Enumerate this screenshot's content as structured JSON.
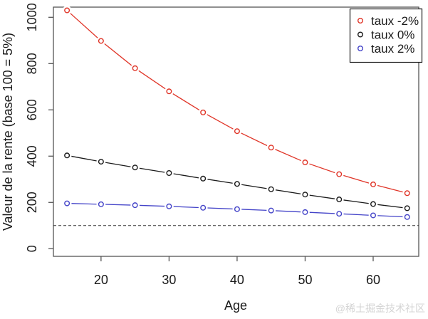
{
  "chart_data": {
    "type": "line",
    "title": "",
    "xlabel": "Age",
    "ylabel": "Valeur de la rente (base 100 = 5%)",
    "x": [
      15,
      20,
      25,
      30,
      35,
      40,
      45,
      50,
      55,
      60,
      65
    ],
    "series": [
      {
        "name": "taux -2%",
        "color": "#e03528",
        "marker": "open-circle",
        "values": [
          1030,
          898,
          780,
          680,
          589,
          508,
          437,
          373,
          322,
          278,
          240
        ]
      },
      {
        "name": "taux 0%",
        "color": "#1a1a1a",
        "marker": "open-circle",
        "values": [
          403,
          376,
          351,
          327,
          303,
          280,
          257,
          234,
          213,
          193,
          175
        ]
      },
      {
        "name": "taux 2%",
        "color": "#4343c8",
        "marker": "open-circle",
        "values": [
          196,
          192,
          188,
          183,
          177,
          171,
          165,
          158,
          151,
          144,
          137
        ]
      }
    ],
    "x_ticks": [
      20,
      30,
      40,
      50,
      60
    ],
    "y_ticks": [
      0,
      200,
      400,
      600,
      800,
      1000
    ],
    "xlim": [
      13,
      66.7
    ],
    "ylim": [
      -33,
      1044
    ],
    "grid": false,
    "reference_line": {
      "y": 100,
      "style": "dashed"
    },
    "legend_position": "top-right",
    "line_type": "points-and-segments"
  },
  "watermark": "@稀土掘金技术社区",
  "colors": {
    "axis": "#555555",
    "text": "#1a1a1a",
    "reference_line": "#333333",
    "watermark": "#d4d4d4",
    "background": "#ffffff"
  }
}
